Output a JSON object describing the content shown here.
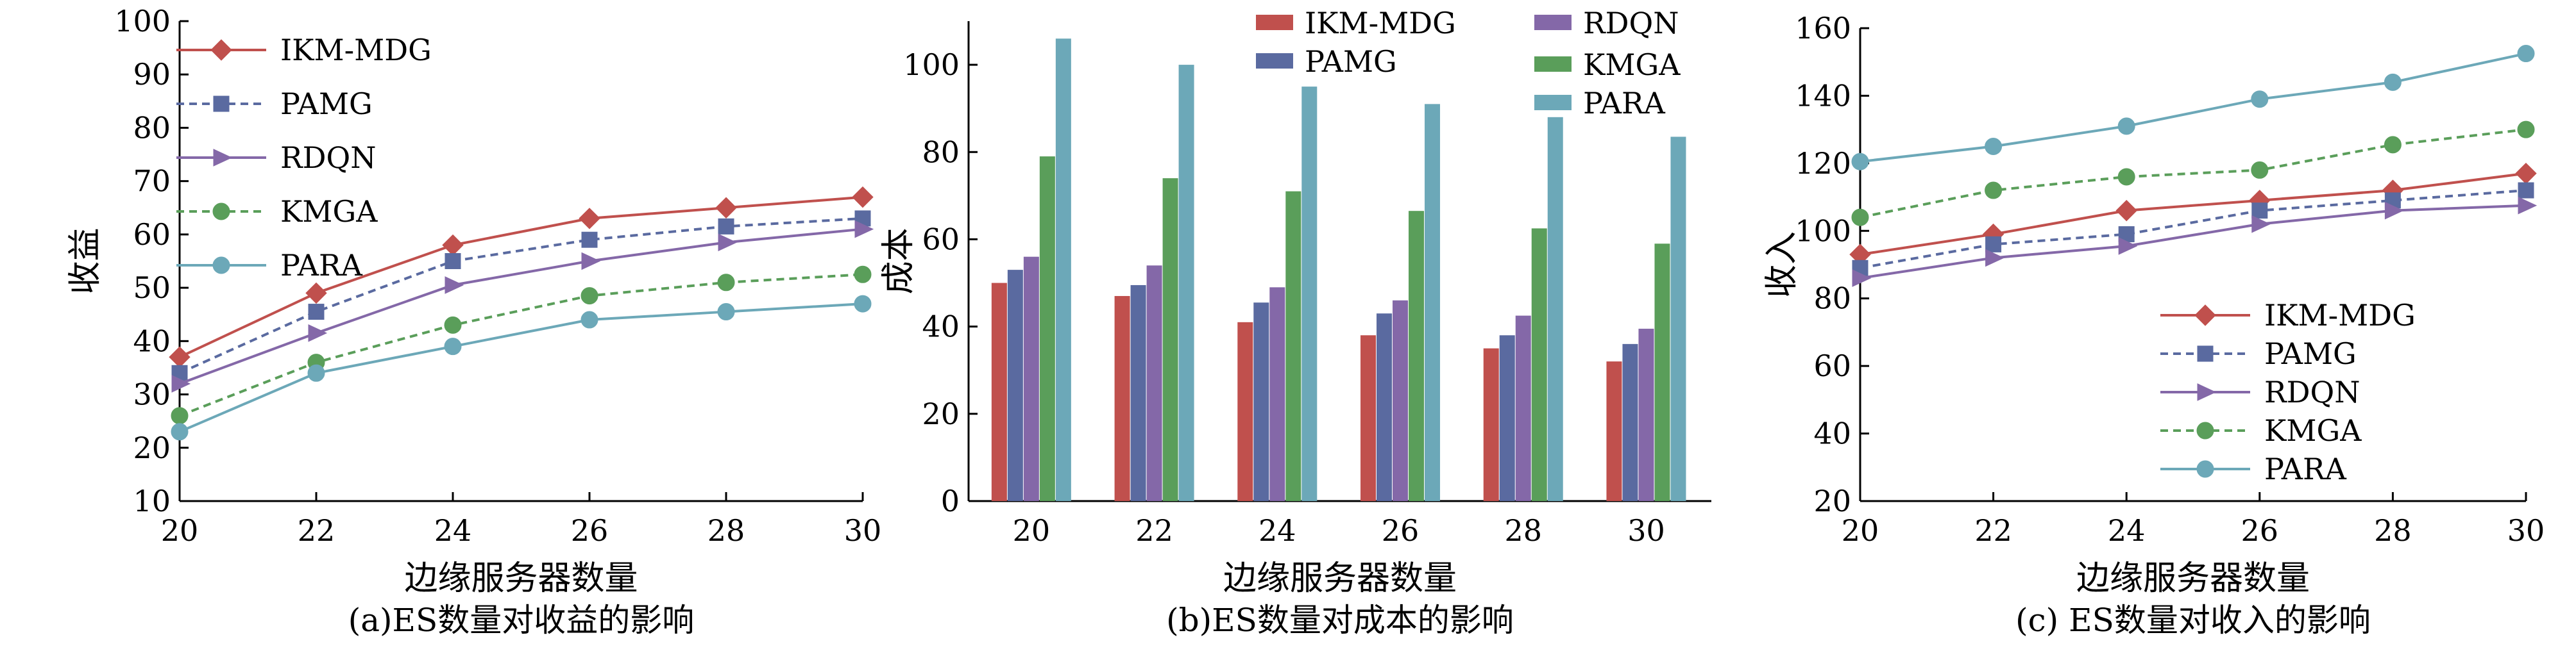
{
  "colors": {
    "IKM-MDG": "#c0504d",
    "PAMG": "#5a6aa0",
    "RDQN": "#8468a8",
    "KMGA": "#5a9e5a",
    "PARA": "#6ca8b8"
  },
  "chart_data": [
    {
      "type": "line",
      "caption": "(a)ES数量对收益的影响",
      "xlabel": "边缘服务器数量",
      "ylabel": "收益",
      "x": [
        20,
        22,
        24,
        26,
        28,
        30
      ],
      "xlim": [
        20,
        30
      ],
      "ylim": [
        10,
        100
      ],
      "xticks": [
        20,
        22,
        24,
        26,
        28,
        30
      ],
      "yticks": [
        10,
        20,
        30,
        40,
        50,
        60,
        70,
        80,
        90,
        100
      ],
      "legend": "top-left",
      "grid": false,
      "series": [
        {
          "name": "IKM-MDG",
          "marker": "diamond",
          "dash": false,
          "values": [
            37,
            49,
            58,
            63,
            65,
            67
          ]
        },
        {
          "name": "PAMG",
          "marker": "square",
          "dash": true,
          "values": [
            34,
            45.5,
            55,
            59,
            61.5,
            63
          ]
        },
        {
          "name": "RDQN",
          "marker": "triangle-right",
          "dash": false,
          "values": [
            32,
            41.5,
            50.5,
            55,
            58.5,
            61
          ]
        },
        {
          "name": "KMGA",
          "marker": "circle",
          "dash": true,
          "values": [
            26,
            36,
            43,
            48.5,
            51,
            52.5
          ]
        },
        {
          "name": "PARA",
          "marker": "circle",
          "dash": false,
          "values": [
            23,
            34,
            39,
            44,
            45.5,
            47
          ]
        }
      ]
    },
    {
      "type": "bar",
      "caption": "(b)ES数量对成本的影响",
      "xlabel": "边缘服务器数量",
      "ylabel": "成本",
      "categories": [
        "20",
        "22",
        "24",
        "26",
        "28",
        "30"
      ],
      "ylim": [
        0,
        110
      ],
      "yticks": [
        0,
        20,
        40,
        60,
        80,
        100
      ],
      "legend": "top",
      "grid": false,
      "series": [
        {
          "name": "IKM-MDG",
          "values": [
            50,
            47,
            41,
            38,
            35,
            32
          ]
        },
        {
          "name": "PAMG",
          "values": [
            53,
            49.5,
            45.5,
            43,
            38,
            36
          ]
        },
        {
          "name": "RDQN",
          "values": [
            56,
            54,
            49,
            46,
            42.5,
            39.5
          ]
        },
        {
          "name": "KMGA",
          "values": [
            79,
            74,
            71,
            66.5,
            62.5,
            59
          ]
        },
        {
          "name": "PARA",
          "values": [
            106,
            100,
            95,
            91,
            88,
            83.5
          ]
        }
      ]
    },
    {
      "type": "line",
      "caption": "(c) ES数量对收入的影响",
      "xlabel": "边缘服务器数量",
      "ylabel": "收入",
      "x": [
        20,
        22,
        24,
        26,
        28,
        30
      ],
      "xlim": [
        20,
        30
      ],
      "ylim": [
        20,
        160
      ],
      "xticks": [
        20,
        22,
        24,
        26,
        28,
        30
      ],
      "yticks": [
        20,
        40,
        60,
        80,
        100,
        120,
        140,
        160
      ],
      "legend": "bottom-right",
      "grid": false,
      "series": [
        {
          "name": "IKM-MDG",
          "marker": "diamond",
          "dash": false,
          "values": [
            93,
            99,
            106,
            109,
            112,
            117
          ]
        },
        {
          "name": "PAMG",
          "marker": "square",
          "dash": true,
          "values": [
            89,
            96,
            99,
            106,
            109,
            112
          ]
        },
        {
          "name": "RDQN",
          "marker": "triangle-right",
          "dash": false,
          "values": [
            86,
            92,
            95.5,
            102,
            106,
            107.5
          ]
        },
        {
          "name": "KMGA",
          "marker": "circle",
          "dash": true,
          "values": [
            104,
            112,
            116,
            118,
            125.5,
            130
          ]
        },
        {
          "name": "PARA",
          "marker": "circle",
          "dash": false,
          "values": [
            120.5,
            125,
            131,
            139,
            144,
            152.5
          ]
        }
      ]
    }
  ]
}
